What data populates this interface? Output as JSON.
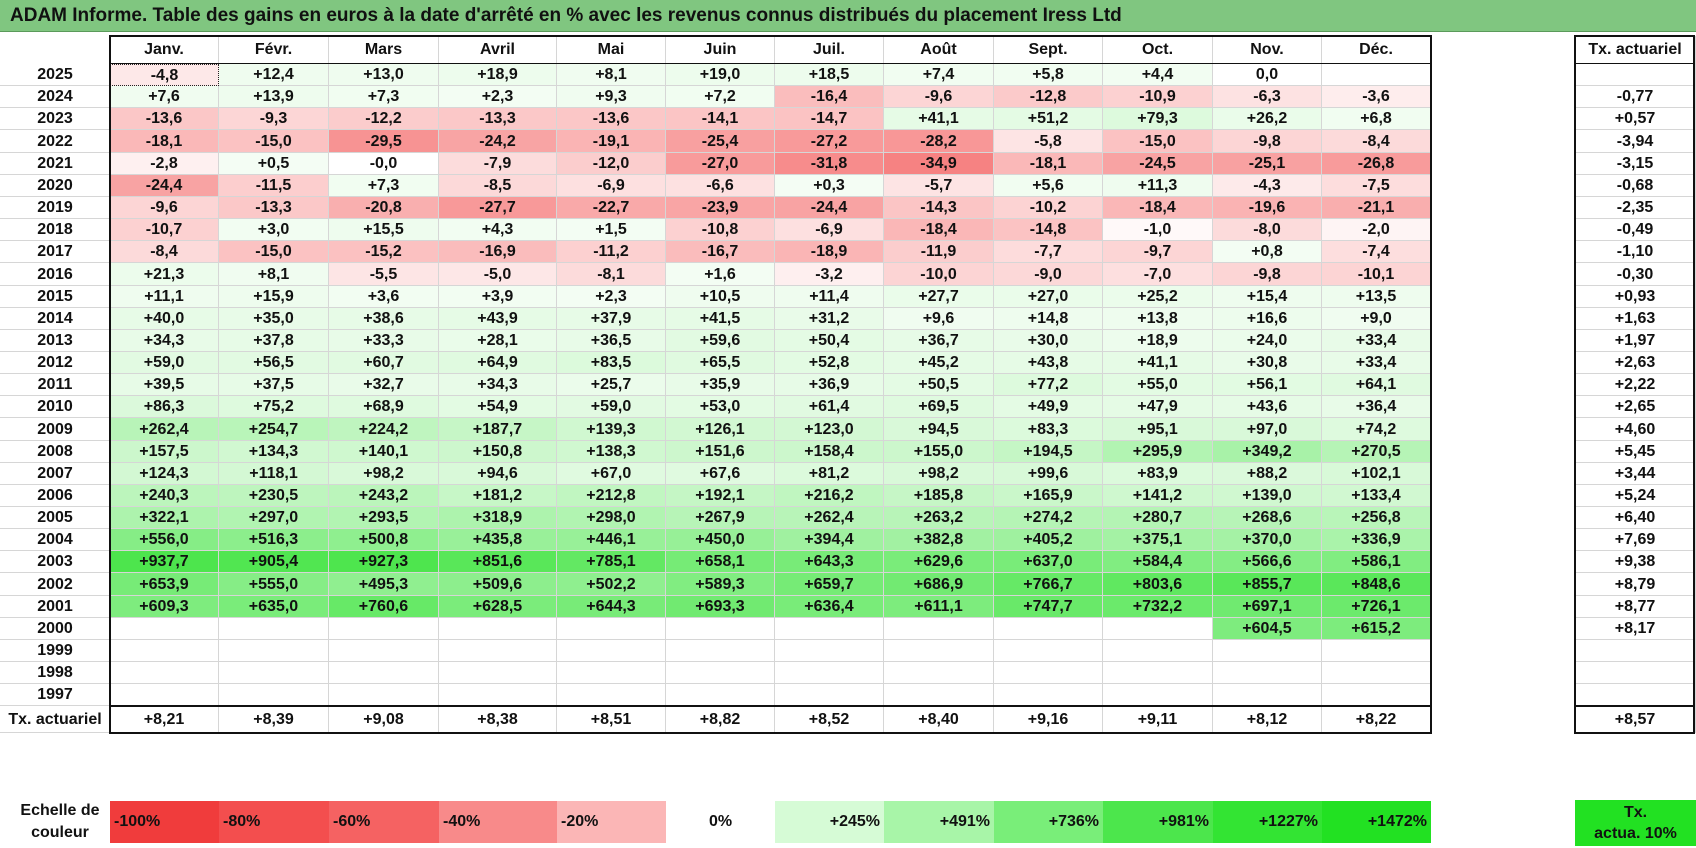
{
  "title": "ADAM Informe. Table des gains en euros à la date d'arrêté en % avec les revenus connus distribués du placement Iress Ltd",
  "months": [
    "Janv.",
    "Févr.",
    "Mars",
    "Avril",
    "Mai",
    "Juin",
    "Juil.",
    "Août",
    "Sept.",
    "Oct.",
    "Nov.",
    "Déc."
  ],
  "tx_header": "Tx. actuariel",
  "rows": [
    {
      "year": "2025",
      "values": [
        "-4,8",
        "+12,4",
        "+13,0",
        "+18,9",
        "+8,1",
        "+19,0",
        "+18,5",
        "+7,4",
        "+5,8",
        "+4,4",
        "0,0",
        ""
      ],
      "tx": ""
    },
    {
      "year": "2024",
      "values": [
        "+7,6",
        "+13,9",
        "+7,3",
        "+2,3",
        "+9,3",
        "+7,2",
        "-16,4",
        "-9,6",
        "-12,8",
        "-10,9",
        "-6,3",
        "-3,6"
      ],
      "tx": "-0,77"
    },
    {
      "year": "2023",
      "values": [
        "-13,6",
        "-9,3",
        "-12,2",
        "-13,3",
        "-13,6",
        "-14,1",
        "-14,7",
        "+41,1",
        "+51,2",
        "+79,3",
        "+26,2",
        "+6,8"
      ],
      "tx": "+0,57"
    },
    {
      "year": "2022",
      "values": [
        "-18,1",
        "-15,0",
        "-29,5",
        "-24,2",
        "-19,1",
        "-25,4",
        "-27,2",
        "-28,2",
        "-5,8",
        "-15,0",
        "-9,8",
        "-8,4"
      ],
      "tx": "-3,94"
    },
    {
      "year": "2021",
      "values": [
        "-2,8",
        "+0,5",
        "-0,0",
        "-7,9",
        "-12,0",
        "-27,0",
        "-31,8",
        "-34,9",
        "-18,1",
        "-24,5",
        "-25,1",
        "-26,8"
      ],
      "tx": "-3,15"
    },
    {
      "year": "2020",
      "values": [
        "-24,4",
        "-11,5",
        "+7,3",
        "-8,5",
        "-6,9",
        "-6,6",
        "+0,3",
        "-5,7",
        "+5,6",
        "+11,3",
        "-4,3",
        "-7,5"
      ],
      "tx": "-0,68"
    },
    {
      "year": "2019",
      "values": [
        "-9,6",
        "-13,3",
        "-20,8",
        "-27,7",
        "-22,7",
        "-23,9",
        "-24,4",
        "-14,3",
        "-10,2",
        "-18,4",
        "-19,6",
        "-21,1"
      ],
      "tx": "-2,35"
    },
    {
      "year": "2018",
      "values": [
        "-10,7",
        "+3,0",
        "+15,5",
        "+4,3",
        "+1,5",
        "-10,8",
        "-6,9",
        "-18,4",
        "-14,8",
        "-1,0",
        "-8,0",
        "-2,0"
      ],
      "tx": "-0,49"
    },
    {
      "year": "2017",
      "values": [
        "-8,4",
        "-15,0",
        "-15,2",
        "-16,9",
        "-11,2",
        "-16,7",
        "-18,9",
        "-11,9",
        "-7,7",
        "-9,7",
        "+0,8",
        "-7,4"
      ],
      "tx": "-1,10"
    },
    {
      "year": "2016",
      "values": [
        "+21,3",
        "+8,1",
        "-5,5",
        "-5,0",
        "-8,1",
        "+1,6",
        "-3,2",
        "-10,0",
        "-9,0",
        "-7,0",
        "-9,8",
        "-10,1"
      ],
      "tx": "-0,30"
    },
    {
      "year": "2015",
      "values": [
        "+11,1",
        "+15,9",
        "+3,6",
        "+3,9",
        "+2,3",
        "+10,5",
        "+11,4",
        "+27,7",
        "+27,0",
        "+25,2",
        "+15,4",
        "+13,5"
      ],
      "tx": "+0,93"
    },
    {
      "year": "2014",
      "values": [
        "+40,0",
        "+35,0",
        "+38,6",
        "+43,9",
        "+37,9",
        "+41,5",
        "+31,2",
        "+9,6",
        "+14,8",
        "+13,8",
        "+16,6",
        "+9,0"
      ],
      "tx": "+1,63"
    },
    {
      "year": "2013",
      "values": [
        "+34,3",
        "+37,8",
        "+33,3",
        "+28,1",
        "+36,5",
        "+59,6",
        "+50,4",
        "+36,7",
        "+30,0",
        "+18,9",
        "+24,0",
        "+33,4"
      ],
      "tx": "+1,97"
    },
    {
      "year": "2012",
      "values": [
        "+59,0",
        "+56,5",
        "+60,7",
        "+64,9",
        "+83,5",
        "+65,5",
        "+52,8",
        "+45,2",
        "+43,8",
        "+41,1",
        "+30,8",
        "+33,4"
      ],
      "tx": "+2,63"
    },
    {
      "year": "2011",
      "values": [
        "+39,5",
        "+37,5",
        "+32,7",
        "+34,3",
        "+25,7",
        "+35,9",
        "+36,9",
        "+50,5",
        "+77,2",
        "+55,0",
        "+56,1",
        "+64,1"
      ],
      "tx": "+2,22"
    },
    {
      "year": "2010",
      "values": [
        "+86,3",
        "+75,2",
        "+68,9",
        "+54,9",
        "+59,0",
        "+53,0",
        "+61,4",
        "+69,5",
        "+49,9",
        "+47,9",
        "+43,6",
        "+36,4"
      ],
      "tx": "+2,65"
    },
    {
      "year": "2009",
      "values": [
        "+262,4",
        "+254,7",
        "+224,2",
        "+187,7",
        "+139,3",
        "+126,1",
        "+123,0",
        "+94,5",
        "+83,3",
        "+95,1",
        "+97,0",
        "+74,2"
      ],
      "tx": "+4,60"
    },
    {
      "year": "2008",
      "values": [
        "+157,5",
        "+134,3",
        "+140,1",
        "+150,8",
        "+138,3",
        "+151,6",
        "+158,4",
        "+155,0",
        "+194,5",
        "+295,9",
        "+349,2",
        "+270,5"
      ],
      "tx": "+5,45"
    },
    {
      "year": "2007",
      "values": [
        "+124,3",
        "+118,1",
        "+98,2",
        "+94,6",
        "+67,0",
        "+67,6",
        "+81,2",
        "+98,2",
        "+99,6",
        "+83,9",
        "+88,2",
        "+102,1"
      ],
      "tx": "+3,44"
    },
    {
      "year": "2006",
      "values": [
        "+240,3",
        "+230,5",
        "+243,2",
        "+181,2",
        "+212,8",
        "+192,1",
        "+216,2",
        "+185,8",
        "+165,9",
        "+141,2",
        "+139,0",
        "+133,4"
      ],
      "tx": "+5,24"
    },
    {
      "year": "2005",
      "values": [
        "+322,1",
        "+297,0",
        "+293,5",
        "+318,9",
        "+298,0",
        "+267,9",
        "+262,4",
        "+263,2",
        "+274,2",
        "+280,7",
        "+268,6",
        "+256,8"
      ],
      "tx": "+6,40"
    },
    {
      "year": "2004",
      "values": [
        "+556,0",
        "+516,3",
        "+500,8",
        "+435,8",
        "+446,1",
        "+450,0",
        "+394,4",
        "+382,8",
        "+405,2",
        "+375,1",
        "+370,0",
        "+336,9"
      ],
      "tx": "+7,69"
    },
    {
      "year": "2003",
      "values": [
        "+937,7",
        "+905,4",
        "+927,3",
        "+851,6",
        "+785,1",
        "+658,1",
        "+643,3",
        "+629,6",
        "+637,0",
        "+584,4",
        "+566,6",
        "+586,1"
      ],
      "tx": "+9,38"
    },
    {
      "year": "2002",
      "values": [
        "+653,9",
        "+555,0",
        "+495,3",
        "+509,6",
        "+502,2",
        "+589,3",
        "+659,7",
        "+686,9",
        "+766,7",
        "+803,6",
        "+855,7",
        "+848,6"
      ],
      "tx": "+8,79"
    },
    {
      "year": "2001",
      "values": [
        "+609,3",
        "+635,0",
        "+760,6",
        "+628,5",
        "+644,3",
        "+693,3",
        "+636,4",
        "+611,1",
        "+747,7",
        "+732,2",
        "+697,1",
        "+726,1"
      ],
      "tx": "+8,77"
    },
    {
      "year": "2000",
      "values": [
        "",
        "",
        "",
        "",
        "",
        "",
        "",
        "",
        "",
        "",
        "+604,5",
        "+615,2"
      ],
      "tx": "+8,17"
    },
    {
      "year": "1999",
      "values": [
        "",
        "",
        "",
        "",
        "",
        "",
        "",
        "",
        "",
        "",
        "",
        ""
      ],
      "tx": ""
    },
    {
      "year": "1998",
      "values": [
        "",
        "",
        "",
        "",
        "",
        "",
        "",
        "",
        "",
        "",
        "",
        ""
      ],
      "tx": ""
    },
    {
      "year": "1997",
      "values": [
        "",
        "",
        "",
        "",
        "",
        "",
        "",
        "",
        "",
        "",
        "",
        ""
      ],
      "tx": ""
    }
  ],
  "footer": {
    "label": "Tx. actuariel",
    "values": [
      "+8,21",
      "+8,39",
      "+9,08",
      "+8,38",
      "+8,51",
      "+8,82",
      "+8,52",
      "+8,40",
      "+9,16",
      "+9,11",
      "+8,12",
      "+8,22"
    ],
    "tx": "+8,57"
  },
  "scale": {
    "label_line1": "Echelle de",
    "label_line2": "couleur",
    "items": [
      {
        "label": "-100%",
        "color": "#f03c3c",
        "kind": "neg"
      },
      {
        "label": "-80%",
        "color": "#f34e4e",
        "kind": "neg"
      },
      {
        "label": "-60%",
        "color": "#f56262",
        "kind": "neg"
      },
      {
        "label": "-40%",
        "color": "#f88a8a",
        "kind": "neg"
      },
      {
        "label": "-20%",
        "color": "#fbb6b6",
        "kind": "neg"
      },
      {
        "label": "0%",
        "color": "#ffffff",
        "kind": "zero"
      },
      {
        "label": "+245%",
        "color": "#d6fbd6",
        "kind": "pos"
      },
      {
        "label": "+491%",
        "color": "#a8f5a8",
        "kind": "pos"
      },
      {
        "label": "+736%",
        "color": "#79ee79",
        "kind": "pos"
      },
      {
        "label": "+981%",
        "color": "#4ce64c",
        "kind": "pos"
      },
      {
        "label": "+1227%",
        "color": "#33e433",
        "kind": "pos"
      },
      {
        "label": "+1472%",
        "color": "#22e122",
        "kind": "pos"
      }
    ],
    "actua_line1": "Tx.",
    "actua_line2": "actua. 10%",
    "actua_color": "#22e122"
  }
}
